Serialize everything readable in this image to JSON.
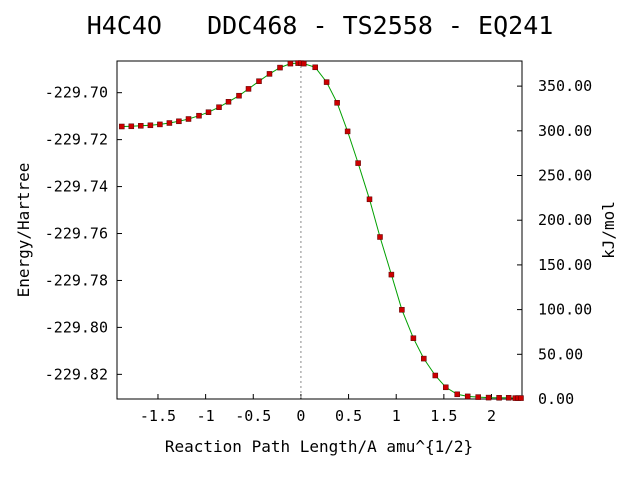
{
  "chart_data": {
    "type": "line",
    "title": "H4C4O   DDC468 - TS2558 - EQ241",
    "xlabel": "Reaction Path Length/A amu^{1/2}",
    "ylabel": "Energy/Hartree",
    "y2label": "kJ/mol",
    "xlim": [
      -1.93,
      2.32
    ],
    "ylim": [
      -229.8305,
      -229.6865
    ],
    "y2lim": [
      0.0,
      378.1
    ],
    "xticks": [
      "-1.5",
      "-1",
      "-0.5",
      "0",
      "0.5",
      "1",
      "1.5",
      "2"
    ],
    "yticks": [
      "-229.70",
      "-229.72",
      "-229.74",
      "-229.76",
      "-229.78",
      "-229.80",
      "-229.82"
    ],
    "y2ticks": [
      "0.00",
      "50.00",
      "100.00",
      "150.00",
      "200.00",
      "250.00",
      "300.00",
      "350.00"
    ],
    "grid": false,
    "ts_marker_x": 0.0,
    "line_color": "#00a000",
    "marker_color": "#cc0000",
    "series": [
      {
        "x": [
          -1.88,
          -1.78,
          -1.68,
          -1.58,
          -1.48,
          -1.38,
          -1.28,
          -1.18,
          -1.07,
          -0.97,
          -0.86,
          -0.76,
          -0.65,
          -0.55,
          -0.44,
          -0.33,
          -0.22,
          -0.11,
          -0.03,
          0.0,
          0.03,
          0.15,
          0.27,
          0.38,
          0.49,
          0.6,
          0.72,
          0.83,
          0.95,
          1.06,
          1.18,
          1.29,
          1.41,
          1.52,
          1.64,
          1.75,
          1.86,
          1.97,
          2.08,
          2.18,
          2.25,
          2.28,
          2.31
        ],
        "y": [
          -229.7144,
          -229.7143,
          -229.7141,
          -229.7139,
          -229.7135,
          -229.7129,
          -229.7122,
          -229.7112,
          -229.7098,
          -229.7083,
          -229.7062,
          -229.7039,
          -229.7013,
          -229.6984,
          -229.6951,
          -229.692,
          -229.6893,
          -229.6876,
          -229.6874,
          -229.6874,
          -229.6876,
          -229.6892,
          -229.6955,
          -229.7043,
          -229.7165,
          -229.73,
          -229.7454,
          -229.7615,
          -229.7775,
          -229.7925,
          -229.8046,
          -229.8133,
          -229.8205,
          -229.8255,
          -229.8285,
          -229.8294,
          -229.8297,
          -229.8299,
          -229.83,
          -229.83,
          -229.8301,
          -229.8301,
          -229.8301
        ]
      }
    ]
  }
}
